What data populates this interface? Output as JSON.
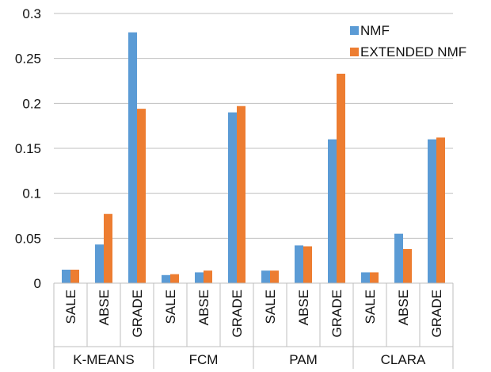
{
  "chart_data": {
    "type": "bar",
    "groups": [
      {
        "name": "K-MEANS",
        "categories": [
          "SALE",
          "ABSE",
          "GRADE"
        ]
      },
      {
        "name": "FCM",
        "categories": [
          "SALE",
          "ABSE",
          "GRADE"
        ]
      },
      {
        "name": "PAM",
        "categories": [
          "SALE",
          "ABSE",
          "GRADE"
        ]
      },
      {
        "name": "CLARA",
        "categories": [
          "SALE",
          "ABSE",
          "GRADE"
        ]
      }
    ],
    "series": [
      {
        "name": "NMF",
        "color": "#5B9BD5",
        "values": [
          0.015,
          0.043,
          0.279,
          0.009,
          0.012,
          0.19,
          0.014,
          0.042,
          0.16,
          0.012,
          0.055,
          0.16
        ]
      },
      {
        "name": "EXTENDED NMF",
        "color": "#ED7D31",
        "values": [
          0.015,
          0.077,
          0.194,
          0.01,
          0.014,
          0.197,
          0.014,
          0.041,
          0.233,
          0.012,
          0.038,
          0.162
        ]
      }
    ],
    "ylim": [
      0,
      0.3
    ],
    "yticks": [
      "0",
      "0.05",
      "0.1",
      "0.15",
      "0.2",
      "0.25",
      "0.3"
    ],
    "ytick_values": [
      0,
      0.05,
      0.1,
      0.15,
      0.2,
      0.25,
      0.3
    ],
    "grid": true,
    "legend_position": "top-right"
  }
}
